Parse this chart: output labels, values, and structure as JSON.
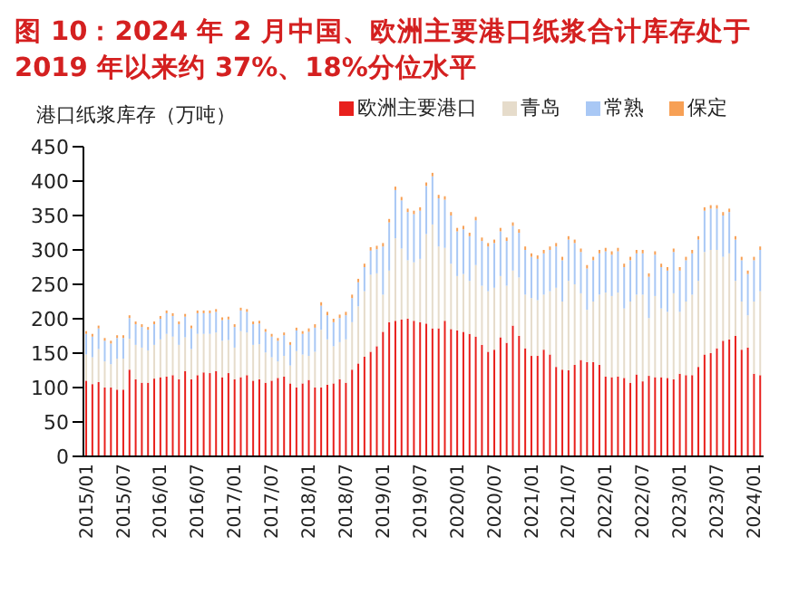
{
  "chart_data": {
    "type": "bar",
    "title": "图 10：2024 年 2 月中国、欧洲主要港口纸浆合计库存处于2019 年以来约 37%、18%分位水平",
    "ylabel": "港口纸浆库存（万吨）",
    "stacked": true,
    "legend": "top",
    "ylim": [
      0,
      450
    ],
    "yticks": [
      0,
      50,
      100,
      150,
      200,
      250,
      300,
      350,
      400,
      450
    ],
    "categories": [
      "2015/01",
      null,
      null,
      null,
      null,
      null,
      "2015/07",
      null,
      null,
      null,
      null,
      null,
      "2016/01",
      null,
      null,
      null,
      null,
      null,
      "2016/07",
      null,
      null,
      null,
      null,
      null,
      "2017/01",
      null,
      null,
      null,
      null,
      null,
      "2017/07",
      null,
      null,
      null,
      null,
      null,
      "2018/01",
      null,
      null,
      null,
      null,
      null,
      "2018/07",
      null,
      null,
      null,
      null,
      null,
      "2019/01",
      null,
      null,
      null,
      null,
      null,
      "2019/07",
      null,
      null,
      null,
      null,
      null,
      "2020/01",
      null,
      null,
      null,
      null,
      null,
      "2020/07",
      null,
      null,
      null,
      null,
      null,
      "2021/01",
      null,
      null,
      null,
      null,
      null,
      "2021/07",
      null,
      null,
      null,
      null,
      null,
      "2022/01",
      null,
      null,
      null,
      null,
      null,
      "2022/07",
      null,
      null,
      null,
      null,
      null,
      "2023/01",
      null,
      null,
      null,
      null,
      null,
      "2023/07",
      null,
      null,
      null,
      null,
      null,
      "2024/01",
      null
    ],
    "series": [
      {
        "name": "欧洲主要港口",
        "color": "#e8201c",
        "values": [
          110,
          105,
          108,
          100,
          100,
          97,
          97,
          126,
          112,
          107,
          107,
          113,
          115,
          116,
          118,
          112,
          124,
          112,
          118,
          122,
          121,
          124,
          115,
          121,
          112,
          115,
          118,
          110,
          112,
          107,
          110,
          114,
          116,
          106,
          100,
          106,
          111,
          100,
          100,
          104,
          106,
          112,
          107,
          126,
          135,
          145,
          152,
          160,
          181,
          195,
          197,
          199,
          200,
          197,
          195,
          193,
          186,
          186,
          197,
          185,
          183,
          181,
          178,
          174,
          162,
          152,
          155,
          173,
          165,
          190,
          175,
          157,
          146,
          146,
          155,
          148,
          130,
          126,
          125,
          133,
          140,
          137,
          137,
          133,
          116,
          115,
          116,
          114,
          107,
          119,
          109,
          117,
          115,
          115,
          114,
          112,
          120,
          118,
          118,
          130,
          148,
          150,
          157,
          168,
          170,
          175,
          155,
          158,
          120,
          118
        ]
      },
      {
        "name": "青岛",
        "color": "#e6dccb",
        "values": [
          38,
          39,
          48,
          38,
          34,
          45,
          45,
          45,
          50,
          51,
          47,
          49,
          55,
          62,
          56,
          50,
          49,
          44,
          60,
          56,
          57,
          56,
          53,
          48,
          46,
          67,
          62,
          52,
          51,
          44,
          34,
          24,
          30,
          26,
          53,
          42,
          35,
          52,
          84,
          66,
          54,
          54,
          63,
          69,
          83,
          95,
          112,
          106,
          54,
          75,
          120,
          103,
          85,
          85,
          92,
          130,
          151,
          119,
          106,
          95,
          79,
          84,
          77,
          104,
          86,
          88,
          90,
          89,
          83,
          80,
          85,
          78,
          84,
          81,
          80,
          92,
          115,
          99,
          130,
          117,
          97,
          76,
          88,
          102,
          122,
          118,
          122,
          101,
          118,
          116,
          126,
          84,
          118,
          100,
          96,
          125,
          90,
          107,
          117,
          125,
          149,
          150,
          143,
          122,
          125,
          80,
          70,
          47,
          105,
          122
        ]
      },
      {
        "name": "常熟",
        "color": "#a9c8f5",
        "values": [
          30,
          30,
          30,
          30,
          30,
          30,
          30,
          30,
          30,
          30,
          30,
          30,
          30,
          30,
          30,
          30,
          30,
          30,
          30,
          30,
          30,
          30,
          30,
          30,
          30,
          30,
          30,
          30,
          30,
          30,
          30,
          30,
          30,
          30,
          30,
          30,
          35,
          35,
          35,
          35,
          35,
          35,
          35,
          35,
          35,
          35,
          35,
          35,
          70,
          70,
          70,
          70,
          70,
          70,
          70,
          70,
          70,
          70,
          70,
          70,
          65,
          65,
          65,
          65,
          65,
          65,
          65,
          65,
          65,
          65,
          65,
          65,
          60,
          60,
          60,
          60,
          60,
          60,
          60,
          60,
          60,
          60,
          60,
          60,
          60,
          60,
          60,
          60,
          60,
          60,
          60,
          60,
          60,
          60,
          60,
          60,
          60,
          60,
          60,
          60,
          60,
          60,
          60,
          60,
          60,
          60,
          60,
          60,
          60,
          60
        ]
      },
      {
        "name": "保定",
        "color": "#f7a055",
        "values": [
          4,
          4,
          4,
          4,
          4,
          4,
          4,
          4,
          4,
          4,
          4,
          4,
          4,
          4,
          4,
          4,
          4,
          4,
          4,
          4,
          4,
          4,
          4,
          4,
          4,
          4,
          4,
          4,
          4,
          4,
          4,
          4,
          4,
          4,
          4,
          4,
          5,
          5,
          5,
          5,
          5,
          5,
          5,
          5,
          5,
          5,
          5,
          5,
          5,
          5,
          5,
          5,
          5,
          5,
          5,
          5,
          5,
          5,
          5,
          5,
          5,
          5,
          5,
          5,
          5,
          5,
          5,
          5,
          5,
          5,
          5,
          5,
          5,
          5,
          5,
          5,
          5,
          5,
          5,
          5,
          5,
          5,
          5,
          5,
          5,
          5,
          5,
          5,
          5,
          5,
          5,
          5,
          5,
          5,
          5,
          5,
          5,
          5,
          5,
          5,
          5,
          5,
          5,
          5,
          5,
          5,
          5,
          5,
          5,
          5
        ]
      }
    ]
  }
}
